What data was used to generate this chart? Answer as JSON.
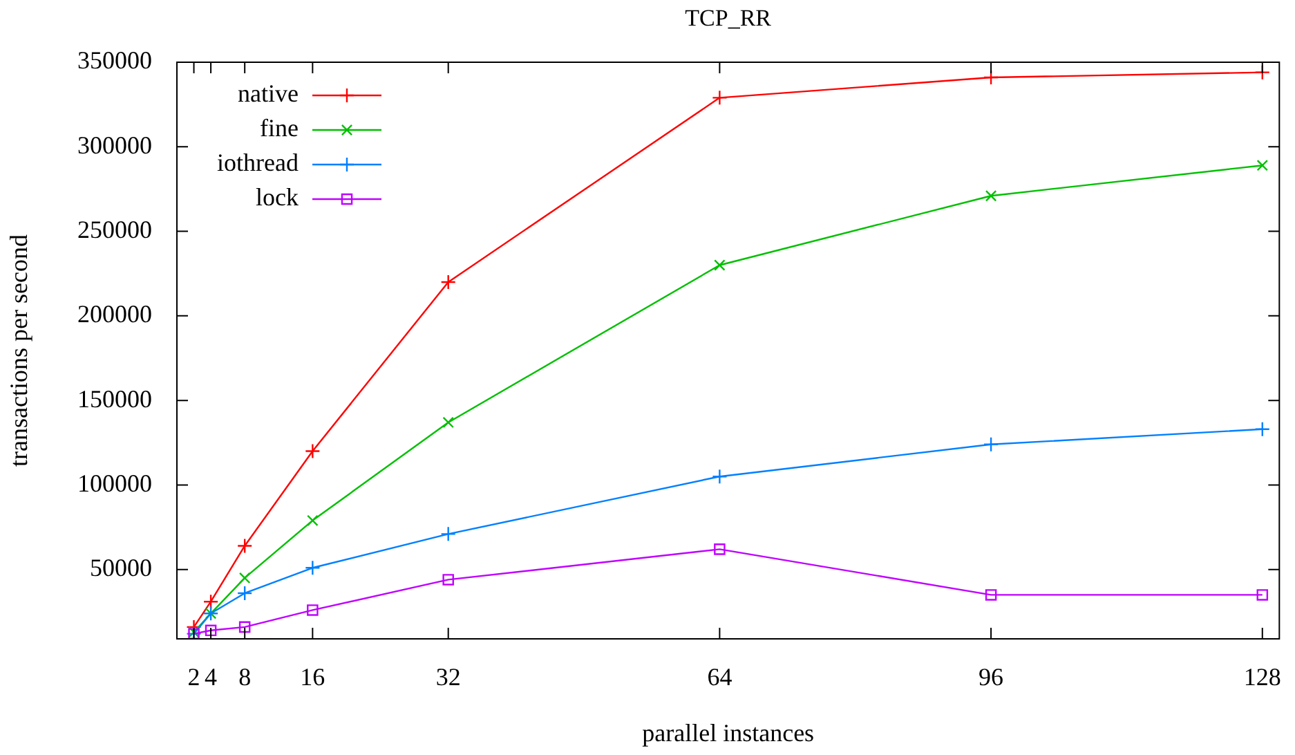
{
  "chart_data": {
    "type": "line",
    "title": "TCP_RR",
    "xlabel": "parallel instances",
    "ylabel": "transactions per second",
    "x": [
      2,
      4,
      8,
      16,
      32,
      64,
      96,
      128
    ],
    "xlim": [
      0,
      130
    ],
    "xticks": [
      2,
      4,
      8,
      16,
      32,
      64,
      96,
      128
    ],
    "ylim": [
      9000,
      350000
    ],
    "yticks": [
      50000,
      100000,
      150000,
      200000,
      250000,
      300000,
      350000
    ],
    "grid": false,
    "legend": "top left",
    "line_style": "solid",
    "series": [
      {
        "name": "native",
        "color": "#ff0000",
        "marker": "cross",
        "values": [
          16000,
          31000,
          64000,
          120000,
          220000,
          329000,
          341000,
          344000
        ]
      },
      {
        "name": "fine",
        "color": "#00c000",
        "marker": "x",
        "values": [
          13000,
          24000,
          45000,
          79000,
          137000,
          230000,
          271000,
          289000
        ]
      },
      {
        "name": "iothread",
        "color": "#0080ff",
        "marker": "cross",
        "values": [
          12000,
          24000,
          36000,
          51000,
          71000,
          105000,
          124000,
          133000
        ]
      },
      {
        "name": "lock",
        "color": "#c000ff",
        "marker": "square",
        "values": [
          12000,
          14000,
          16000,
          26000,
          44000,
          62000,
          35000,
          35000
        ]
      }
    ]
  }
}
